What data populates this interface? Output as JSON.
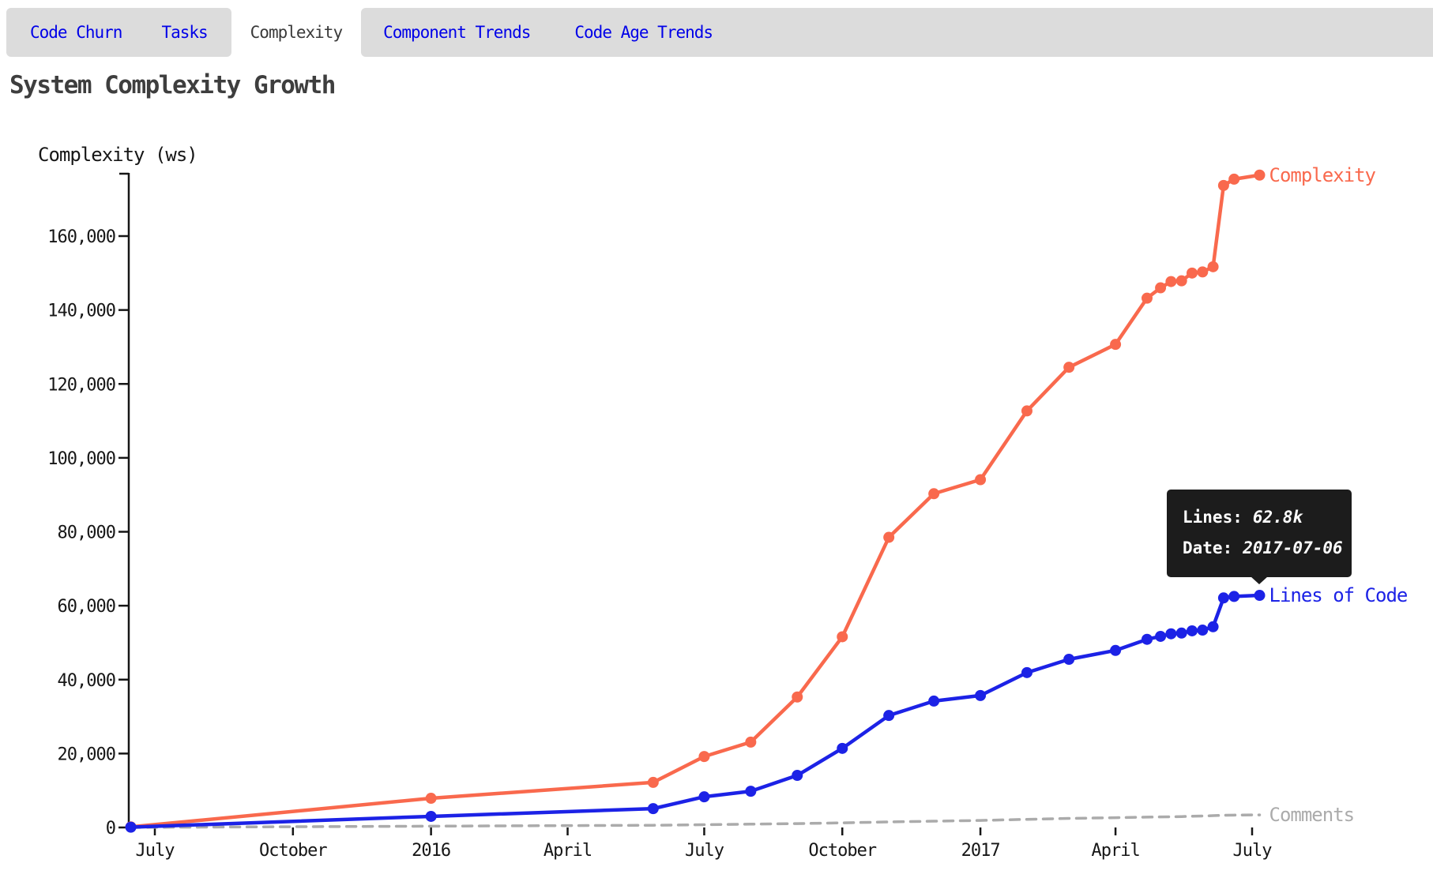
{
  "tabs": [
    {
      "label": "Code Churn",
      "active": false
    },
    {
      "label": "Tasks",
      "active": false
    },
    {
      "label": "Complexity",
      "active": true
    },
    {
      "label": "Component Trends",
      "active": false
    },
    {
      "label": "Code Age Trends",
      "active": false
    }
  ],
  "header": {
    "page_title": "System Complexity Growth"
  },
  "tooltip": {
    "lines_label": "Lines:",
    "lines_value": "62.8k",
    "date_label": "Date:",
    "date_value": "2017-07-06"
  },
  "colors": {
    "complexity_line": "#f9694d",
    "lines_line": "#1c22e6",
    "comments_line": "#ababab",
    "axis": "#161616",
    "tab_link": "#0000e8",
    "tab_active_text": "#3a3a3a",
    "tab_bar_bg": "#dcdcdc",
    "tooltip_bg": "#1c1c1c",
    "title_text": "#3e3e3e"
  },
  "chart_data": {
    "type": "line",
    "title": "System Complexity Growth",
    "y_axis_title": "Complexity (ws)",
    "grid": false,
    "legend_position": "end-of-line-labels",
    "y_axis": {
      "ylim": [
        0,
        176700
      ],
      "ticks": [
        0,
        20000,
        40000,
        60000,
        80000,
        100000,
        120000,
        140000,
        160000
      ],
      "tick_labels": [
        "0",
        "20,000",
        "40,000",
        "60,000",
        "80,000",
        "100,000",
        "120,000",
        "140,000",
        "160,000"
      ]
    },
    "x_axis": {
      "range": [
        "2015-06-14",
        "2017-08-10"
      ],
      "ticks": [
        {
          "date": "2015-07-01",
          "label": "July"
        },
        {
          "date": "2015-10-01",
          "label": "October"
        },
        {
          "date": "2016-01-01",
          "label": "2016"
        },
        {
          "date": "2016-04-01",
          "label": "April"
        },
        {
          "date": "2016-07-01",
          "label": "July"
        },
        {
          "date": "2016-10-01",
          "label": "October"
        },
        {
          "date": "2017-01-01",
          "label": "2017"
        },
        {
          "date": "2017-04-01",
          "label": "April"
        },
        {
          "date": "2017-07-01",
          "label": "July"
        }
      ]
    },
    "dates": [
      "2015-06-15",
      "2016-01-01",
      "2016-05-28",
      "2016-07-01",
      "2016-08-01",
      "2016-09-01",
      "2016-10-01",
      "2016-11-01",
      "2016-12-01",
      "2017-01-01",
      "2017-02-01",
      "2017-03-01",
      "2017-04-01",
      "2017-04-22",
      "2017-05-01",
      "2017-05-08",
      "2017-05-15",
      "2017-05-22",
      "2017-05-29",
      "2017-06-05",
      "2017-06-12",
      "2017-06-19",
      "2017-07-06"
    ],
    "series": [
      {
        "name": "Complexity",
        "color": "#f9694d",
        "style": "solid",
        "markers": true,
        "values": [
          150,
          7900,
          12200,
          19200,
          23100,
          35300,
          51600,
          78500,
          90300,
          94100,
          112700,
          124500,
          130700,
          143200,
          146000,
          147700,
          147900,
          150000,
          150300,
          151700,
          173700,
          175400,
          176500
        ]
      },
      {
        "name": "Lines of Code",
        "color": "#1c22e6",
        "style": "solid",
        "markers": true,
        "values": [
          80,
          3000,
          5100,
          8300,
          9800,
          14100,
          21400,
          30300,
          34200,
          35700,
          41900,
          45500,
          47900,
          50900,
          51700,
          52400,
          52600,
          53200,
          53400,
          54300,
          62100,
          62500,
          62800
        ]
      },
      {
        "name": "Comments",
        "color": "#ababab",
        "style": "dashed",
        "markers": false,
        "values": [
          20,
          350,
          600,
          750,
          900,
          1050,
          1250,
          1500,
          1700,
          1900,
          2200,
          2450,
          2650,
          2800,
          2850,
          2900,
          2950,
          3050,
          3100,
          3200,
          3300,
          3350,
          3400
        ]
      }
    ],
    "hovered_point": {
      "series": "Lines of Code",
      "date": "2017-07-06",
      "value_label": "62.8k"
    }
  }
}
